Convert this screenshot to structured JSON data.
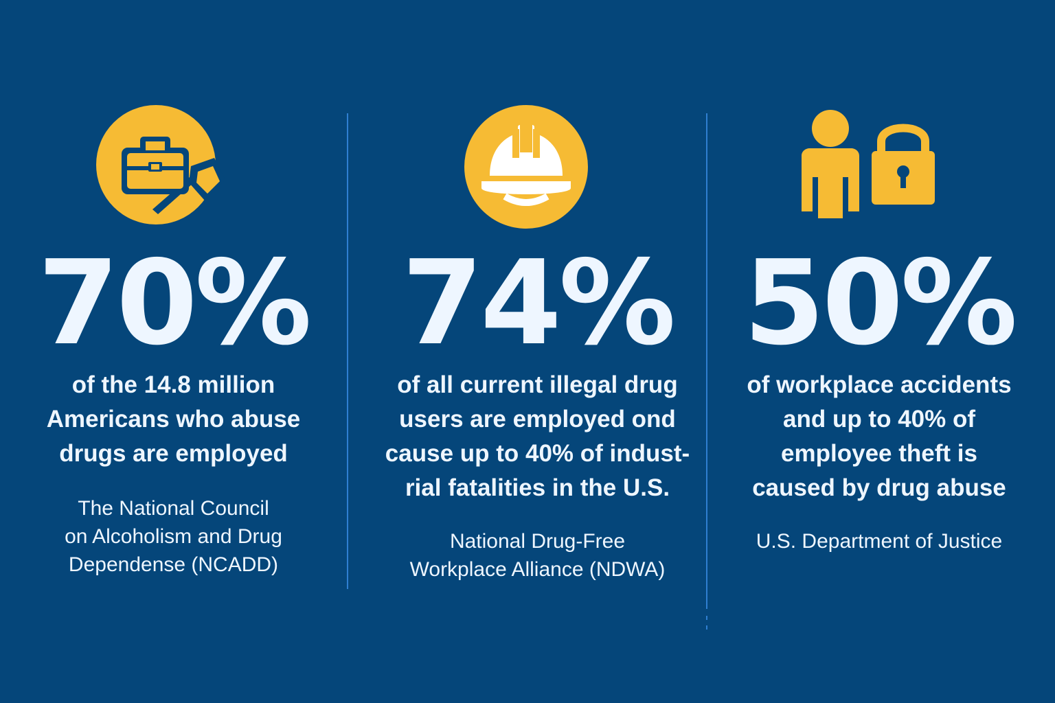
{
  "colors": {
    "background": "#05467a",
    "accent": "#f6bb34",
    "text": "#eef6ff",
    "divider": "#2f7fd1"
  },
  "stats": [
    {
      "icon": "briefcase-icon",
      "percent": "70%",
      "description": [
        "of the 14.8 million",
        "Americans who abuse",
        "drugs are employed"
      ],
      "source": [
        "The National Council",
        "on Alcoholism and Drug",
        "Dependense (NCADD)"
      ]
    },
    {
      "icon": "hard-hat-icon",
      "percent": "74%",
      "description": [
        "of all current illegal drug",
        "users are employed ond",
        "cause up to 40% of indust-",
        "rial fatalities in the U.S."
      ],
      "source": [
        "National Drug-Free",
        "Workplace Alliance (NDWA)"
      ]
    },
    {
      "icon": "person-lock-icon",
      "percent": "50%",
      "description": [
        "of workplace accidents",
        "and up to 40% of",
        "employee theft is",
        "caused by drug abuse"
      ],
      "source": [
        "U.S. Department of Justice"
      ]
    }
  ]
}
